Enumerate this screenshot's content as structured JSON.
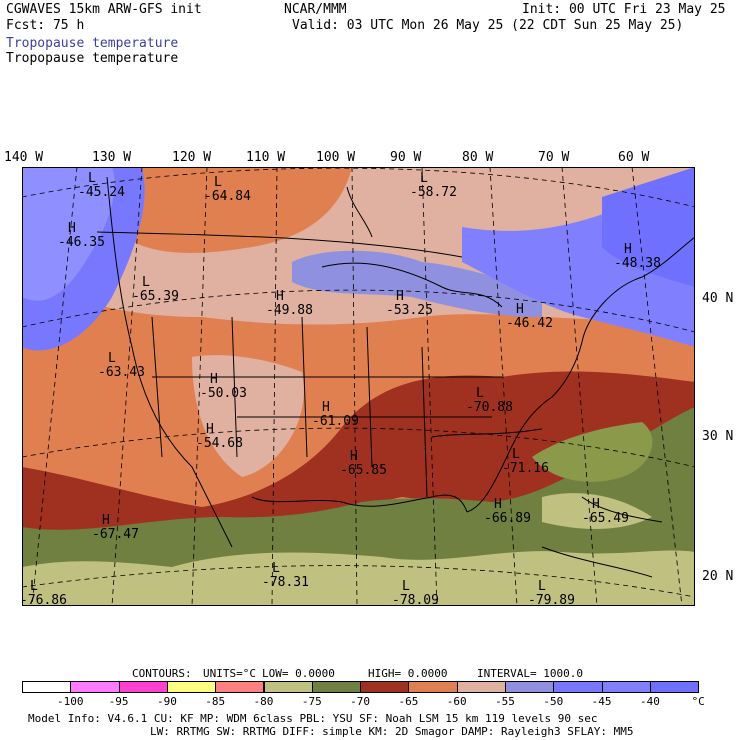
{
  "header": {
    "model_title": "CGWAVES 15km ARW-GFS init",
    "forecast": "Fcst:   75 h",
    "org": "NCAR/MMM",
    "init": "Init: 00 UTC Fri 23 May 25",
    "valid": "Valid: 03 UTC Mon 26 May 25 (22 CDT Sun 25 May 25)",
    "field1": "Tropopause temperature",
    "field2": "Tropopause temperature"
  },
  "axes": {
    "longitudes": [
      "140 W",
      "130 W",
      "120 W",
      "110 W",
      "100 W",
      "90 W",
      "80 W",
      "70 W",
      "60 W"
    ],
    "latitudes": [
      "40 N",
      "30 N",
      "20 N"
    ]
  },
  "map_labels": [
    {
      "kind": "L",
      "value": "-45.24"
    },
    {
      "kind": "H",
      "value": "-46.35"
    },
    {
      "kind": "L",
      "value": "-64.84"
    },
    {
      "kind": "L",
      "value": "-65.39"
    },
    {
      "kind": "H",
      "value": "-49.88"
    },
    {
      "kind": "H",
      "value": "-53.25"
    },
    {
      "kind": "L",
      "value": "-58.72"
    },
    {
      "kind": "H",
      "value": "-48.38"
    },
    {
      "kind": "H",
      "value": "-46.42"
    },
    {
      "kind": "L",
      "value": "-63.43"
    },
    {
      "kind": "H",
      "value": "-50.03"
    },
    {
      "kind": "H",
      "value": "-54.68"
    },
    {
      "kind": "H",
      "value": "-61.09"
    },
    {
      "kind": "L",
      "value": "-70.88"
    },
    {
      "kind": "H",
      "value": "-65.85"
    },
    {
      "kind": "L",
      "value": "-71.16"
    },
    {
      "kind": "H",
      "value": "-67.47"
    },
    {
      "kind": "H",
      "value": "-66.89"
    },
    {
      "kind": "H",
      "value": "-65.49"
    },
    {
      "kind": "L",
      "value": "-78.31"
    },
    {
      "kind": "L",
      "value": "-78.09"
    },
    {
      "kind": "L",
      "value": "-76.86"
    },
    {
      "kind": "L",
      "value": "-79.89"
    }
  ],
  "contour_info": {
    "contours": "CONTOURS:",
    "units": "UNITS=°C",
    "low": "LOW=  0.0000",
    "high": "HIGH=  0.0000",
    "interval": "INTERVAL=    1000.0"
  },
  "colorbar": {
    "colors": [
      "#ffffff",
      "#ff7aff",
      "#ff40d0",
      "#ffff80",
      "#ff8080",
      "#c0c080",
      "#708040",
      "#a03020",
      "#e08050",
      "#e0b0a0",
      "#9090e0",
      "#7878ff",
      "#8080ff",
      "#7070ff"
    ],
    "labels": [
      "-100",
      "-95",
      "-90",
      "-85",
      "-80",
      "-75",
      "-70",
      "-65",
      "-60",
      "-55",
      "-50",
      "-45",
      "-40",
      "°C"
    ]
  },
  "footer": {
    "line1": "Model Info: V4.6.1    CU: KF     MP: WDM 6class   PBL: YSU      SF: Noah LSM     15 km   119 levels   90 sec",
    "line2": "LW: RRTMG   SW: RRTMG  DIFF: simple KM: 2D Smagor DAMP: Rayleigh3  SFLAY: MM5"
  }
}
